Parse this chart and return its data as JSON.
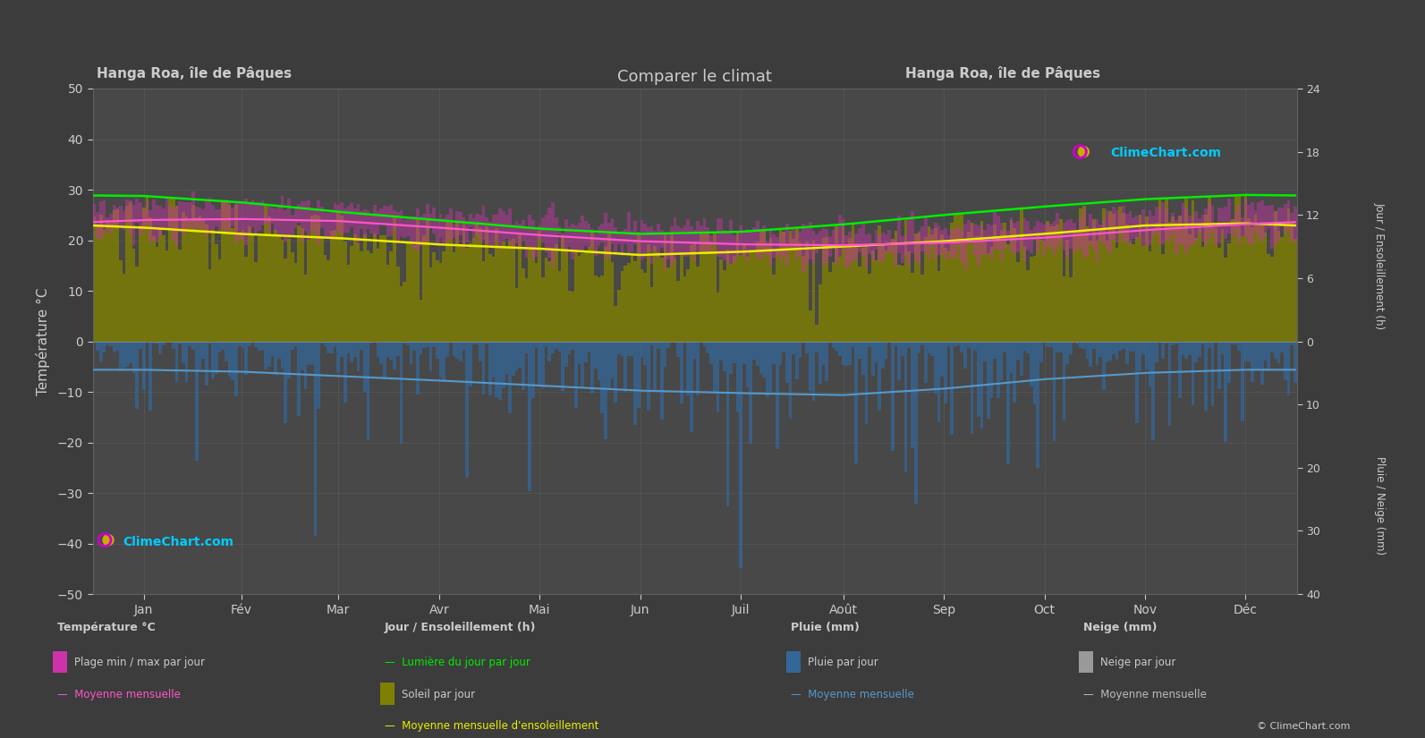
{
  "title": "Comparer le climat",
  "location_left": "Hanga Roa, île de Pâques",
  "location_right": "Hanga Roa, île de Pâques",
  "background_color": "#3c3c3c",
  "plot_bg_color": "#484848",
  "grid_color": "#606060",
  "text_color": "#cccccc",
  "months": [
    "Jan",
    "Fév",
    "Mar",
    "Avr",
    "Mai",
    "Jun",
    "Juil",
    "Août",
    "Sep",
    "Oct",
    "Nov",
    "Déc"
  ],
  "days_per_month": [
    31,
    28,
    31,
    30,
    31,
    30,
    31,
    31,
    30,
    31,
    30,
    31
  ],
  "temp_ylim": [
    -50,
    50
  ],
  "temp_mean": [
    24.0,
    24.2,
    23.8,
    22.5,
    21.0,
    19.8,
    19.2,
    19.0,
    19.5,
    20.5,
    22.0,
    23.2
  ],
  "temp_max_daily_mean": [
    27.0,
    27.2,
    26.8,
    25.5,
    24.2,
    22.8,
    22.2,
    22.0,
    22.5,
    23.5,
    25.0,
    26.5
  ],
  "temp_min_daily_mean": [
    21.5,
    21.8,
    21.2,
    20.0,
    18.5,
    17.2,
    16.8,
    16.5,
    17.0,
    18.0,
    19.5,
    20.8
  ],
  "daylight_hours": [
    13.8,
    13.2,
    12.3,
    11.5,
    10.7,
    10.2,
    10.4,
    11.1,
    12.0,
    12.8,
    13.5,
    13.9
  ],
  "sunshine_mean_hours": [
    10.8,
    10.2,
    9.8,
    9.2,
    8.8,
    8.2,
    8.5,
    9.0,
    9.5,
    10.2,
    11.0,
    11.2
  ],
  "rain_mean_mm": [
    4.5,
    4.8,
    5.5,
    6.2,
    7.0,
    7.8,
    8.2,
    8.5,
    7.5,
    6.0,
    5.0,
    4.5
  ],
  "temp_band_color": "#cc33aa",
  "sunshine_bar_color": "#808000",
  "daylight_line_color": "#00ee00",
  "sunshine_line_color": "#eeee00",
  "temp_mean_line_color": "#ff55cc",
  "rain_bar_color": "#336699",
  "rain_line_color": "#5599cc",
  "snow_bar_color": "#999999",
  "snow_line_color": "#bbbbbb",
  "seed": 42,
  "sun_max": 24.0,
  "rain_max": 40.0
}
